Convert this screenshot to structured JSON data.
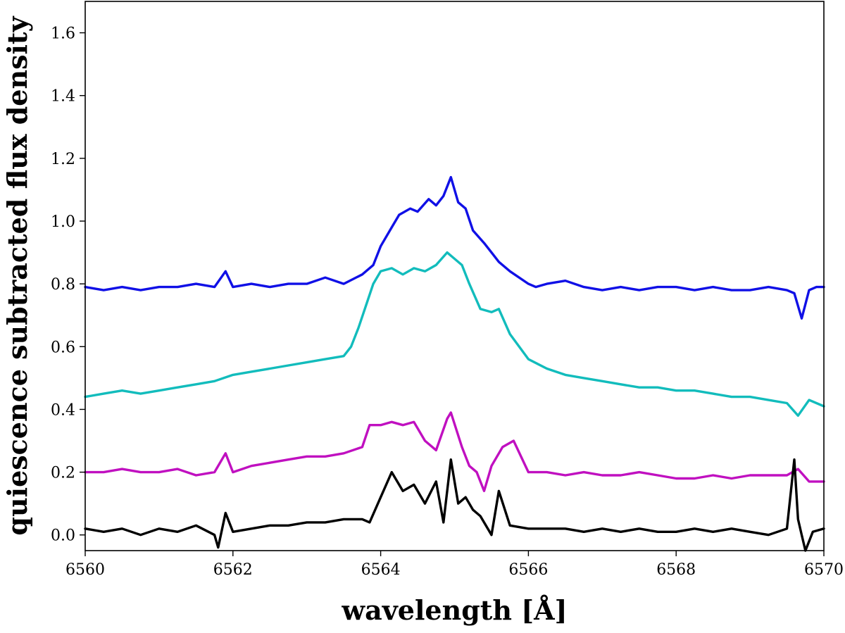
{
  "chart_data": {
    "type": "line",
    "title": "",
    "xlabel": "wavelength [Å]",
    "ylabel": "quiescence subtracted flux density",
    "xlim": [
      6560,
      6570
    ],
    "ylim": [
      -0.05,
      1.7
    ],
    "xticks": [
      6560,
      6562,
      6564,
      6566,
      6568,
      6570
    ],
    "xtick_labels": [
      "6560",
      "6562",
      "6564",
      "6566",
      "6568",
      "6570"
    ],
    "yticks": [
      0.0,
      0.2,
      0.4,
      0.6,
      0.8,
      1.0,
      1.2,
      1.4,
      1.6
    ],
    "ytick_labels": [
      "0.0",
      "0.2",
      "0.4",
      "0.6",
      "0.8",
      "1.0",
      "1.2",
      "1.4",
      "1.6"
    ],
    "grid": false,
    "legend": "none",
    "series": [
      {
        "color": "#1010e6",
        "x": [
          6560.0,
          6560.25,
          6560.5,
          6560.75,
          6561.0,
          6561.25,
          6561.5,
          6561.75,
          6561.9,
          6562.0,
          6562.25,
          6562.5,
          6562.75,
          6563.0,
          6563.25,
          6563.5,
          6563.75,
          6563.9,
          6564.0,
          6564.15,
          6564.25,
          6564.4,
          6564.5,
          6564.65,
          6564.75,
          6564.85,
          6564.95,
          6565.05,
          6565.15,
          6565.25,
          6565.4,
          6565.5,
          6565.6,
          6565.75,
          6566.0,
          6566.1,
          6566.25,
          6566.5,
          6566.75,
          6567.0,
          6567.25,
          6567.5,
          6567.75,
          6568.0,
          6568.25,
          6568.5,
          6568.75,
          6569.0,
          6569.25,
          6569.5,
          6569.6,
          6569.7,
          6569.8,
          6569.9,
          6570.0
        ],
        "y": [
          0.79,
          0.78,
          0.79,
          0.78,
          0.79,
          0.79,
          0.8,
          0.79,
          0.84,
          0.79,
          0.8,
          0.79,
          0.8,
          0.8,
          0.82,
          0.8,
          0.83,
          0.86,
          0.92,
          0.98,
          1.02,
          1.04,
          1.03,
          1.07,
          1.05,
          1.08,
          1.14,
          1.06,
          1.04,
          0.97,
          0.93,
          0.9,
          0.87,
          0.84,
          0.8,
          0.79,
          0.8,
          0.81,
          0.79,
          0.78,
          0.79,
          0.78,
          0.79,
          0.79,
          0.78,
          0.79,
          0.78,
          0.78,
          0.79,
          0.78,
          0.77,
          0.69,
          0.78,
          0.79,
          0.79
        ]
      },
      {
        "color": "#12bcbc",
        "x": [
          6560.0,
          6560.25,
          6560.5,
          6560.75,
          6561.0,
          6561.25,
          6561.5,
          6561.75,
          6562.0,
          6562.25,
          6562.5,
          6562.75,
          6563.0,
          6563.25,
          6563.5,
          6563.6,
          6563.7,
          6563.8,
          6563.9,
          6564.0,
          6564.15,
          6564.3,
          6564.45,
          6564.6,
          6564.75,
          6564.9,
          6565.0,
          6565.1,
          6565.2,
          6565.35,
          6565.5,
          6565.6,
          6565.75,
          6566.0,
          6566.25,
          6566.5,
          6566.75,
          6567.0,
          6567.25,
          6567.5,
          6567.75,
          6568.0,
          6568.25,
          6568.5,
          6568.75,
          6569.0,
          6569.25,
          6569.5,
          6569.65,
          6569.8,
          6570.0
        ],
        "y": [
          0.44,
          0.45,
          0.46,
          0.45,
          0.46,
          0.47,
          0.48,
          0.49,
          0.51,
          0.52,
          0.53,
          0.54,
          0.55,
          0.56,
          0.57,
          0.6,
          0.66,
          0.73,
          0.8,
          0.84,
          0.85,
          0.83,
          0.85,
          0.84,
          0.86,
          0.9,
          0.88,
          0.86,
          0.8,
          0.72,
          0.71,
          0.72,
          0.64,
          0.56,
          0.53,
          0.51,
          0.5,
          0.49,
          0.48,
          0.47,
          0.47,
          0.46,
          0.46,
          0.45,
          0.44,
          0.44,
          0.43,
          0.42,
          0.38,
          0.43,
          0.41
        ]
      },
      {
        "color": "#c010c0",
        "x": [
          6560.0,
          6560.25,
          6560.5,
          6560.75,
          6561.0,
          6561.25,
          6561.5,
          6561.75,
          6561.9,
          6562.0,
          6562.25,
          6562.5,
          6562.75,
          6563.0,
          6563.25,
          6563.5,
          6563.75,
          6563.85,
          6564.0,
          6564.15,
          6564.3,
          6564.45,
          6564.6,
          6564.75,
          6564.9,
          6564.95,
          6565.1,
          6565.2,
          6565.3,
          6565.4,
          6565.5,
          6565.65,
          6565.8,
          6566.0,
          6566.25,
          6566.5,
          6566.75,
          6567.0,
          6567.25,
          6567.5,
          6567.75,
          6568.0,
          6568.25,
          6568.5,
          6568.75,
          6569.0,
          6569.25,
          6569.5,
          6569.65,
          6569.8,
          6570.0
        ],
        "y": [
          0.2,
          0.2,
          0.21,
          0.2,
          0.2,
          0.21,
          0.19,
          0.2,
          0.26,
          0.2,
          0.22,
          0.23,
          0.24,
          0.25,
          0.25,
          0.26,
          0.28,
          0.35,
          0.35,
          0.36,
          0.35,
          0.36,
          0.3,
          0.27,
          0.37,
          0.39,
          0.28,
          0.22,
          0.2,
          0.14,
          0.22,
          0.28,
          0.3,
          0.2,
          0.2,
          0.19,
          0.2,
          0.19,
          0.19,
          0.2,
          0.19,
          0.18,
          0.18,
          0.19,
          0.18,
          0.19,
          0.19,
          0.19,
          0.21,
          0.17,
          0.17
        ]
      },
      {
        "color": "#000000",
        "x": [
          6560.0,
          6560.25,
          6560.5,
          6560.75,
          6561.0,
          6561.25,
          6561.5,
          6561.75,
          6561.8,
          6561.9,
          6562.0,
          6562.25,
          6562.5,
          6562.75,
          6563.0,
          6563.25,
          6563.5,
          6563.75,
          6563.85,
          6564.0,
          6564.15,
          6564.3,
          6564.45,
          6564.6,
          6564.75,
          6564.85,
          6564.95,
          6565.05,
          6565.15,
          6565.25,
          6565.35,
          6565.5,
          6565.6,
          6565.75,
          6566.0,
          6566.25,
          6566.5,
          6566.75,
          6567.0,
          6567.25,
          6567.5,
          6567.75,
          6568.0,
          6568.25,
          6568.5,
          6568.75,
          6569.0,
          6569.25,
          6569.5,
          6569.6,
          6569.65,
          6569.7,
          6569.75,
          6569.85,
          6570.0
        ],
        "y": [
          0.02,
          0.01,
          0.02,
          0.0,
          0.02,
          0.01,
          0.03,
          0.0,
          -0.04,
          0.07,
          0.01,
          0.02,
          0.03,
          0.03,
          0.04,
          0.04,
          0.05,
          0.05,
          0.04,
          0.12,
          0.2,
          0.14,
          0.16,
          0.1,
          0.17,
          0.04,
          0.24,
          0.1,
          0.12,
          0.08,
          0.06,
          0.0,
          0.14,
          0.03,
          0.02,
          0.02,
          0.02,
          0.01,
          0.02,
          0.01,
          0.02,
          0.01,
          0.01,
          0.02,
          0.01,
          0.02,
          0.01,
          0.0,
          0.02,
          0.24,
          0.05,
          0.0,
          -0.05,
          0.01,
          0.02
        ]
      }
    ]
  }
}
